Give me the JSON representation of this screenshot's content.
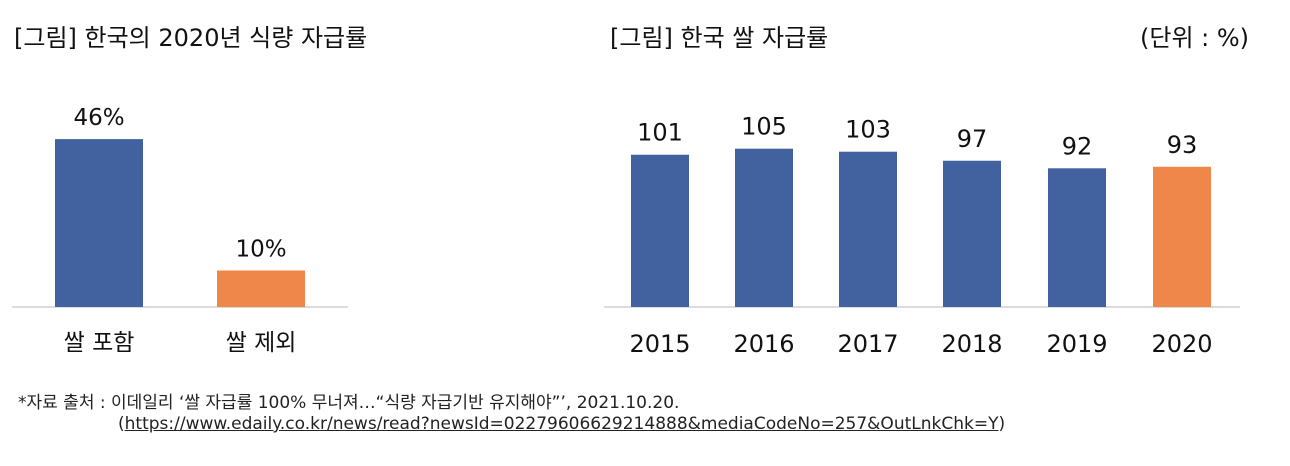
{
  "charts": {
    "left": {
      "title": "[그림] 한국의 2020년 식량 자급률"
    },
    "right": {
      "title": "[그림] 한국 쌀 자급률",
      "unit_label": "(단위 : %)"
    }
  },
  "chart_data": [
    {
      "type": "bar",
      "title": "[그림] 한국의 2020년 식량 자급률",
      "categories": [
        "쌀 포함",
        "쌀 제외"
      ],
      "values": [
        46,
        10
      ],
      "value_labels": [
        "46%",
        "10%"
      ],
      "colors": [
        "#41629e",
        "#f0874a"
      ],
      "ylim": [
        0,
        60
      ]
    },
    {
      "type": "bar",
      "title": "[그림] 한국 쌀 자급률",
      "unit": "(단위 : %)",
      "categories": [
        "2015",
        "2016",
        "2017",
        "2018",
        "2019",
        "2020"
      ],
      "values": [
        101,
        105,
        103,
        97,
        92,
        93
      ],
      "value_labels": [
        "101",
        "105",
        "103",
        "97",
        "92",
        "93"
      ],
      "colors": [
        "#41629e",
        "#41629e",
        "#41629e",
        "#41629e",
        "#41629e",
        "#f0874a"
      ],
      "ylim": [
        0,
        130
      ]
    }
  ],
  "source": {
    "line1": "*자료 출처 : 이데일리 ‘쌀 자급률 100% 무너져…“식량 자급기반 유지해야”’, 2021.10.20.",
    "line2_open": "(",
    "url": "https://www.edaily.co.kr/news/read?newsId=02279606629214888&mediaCodeNo=257&OutLnkChk=Y",
    "line2_close": ")"
  }
}
